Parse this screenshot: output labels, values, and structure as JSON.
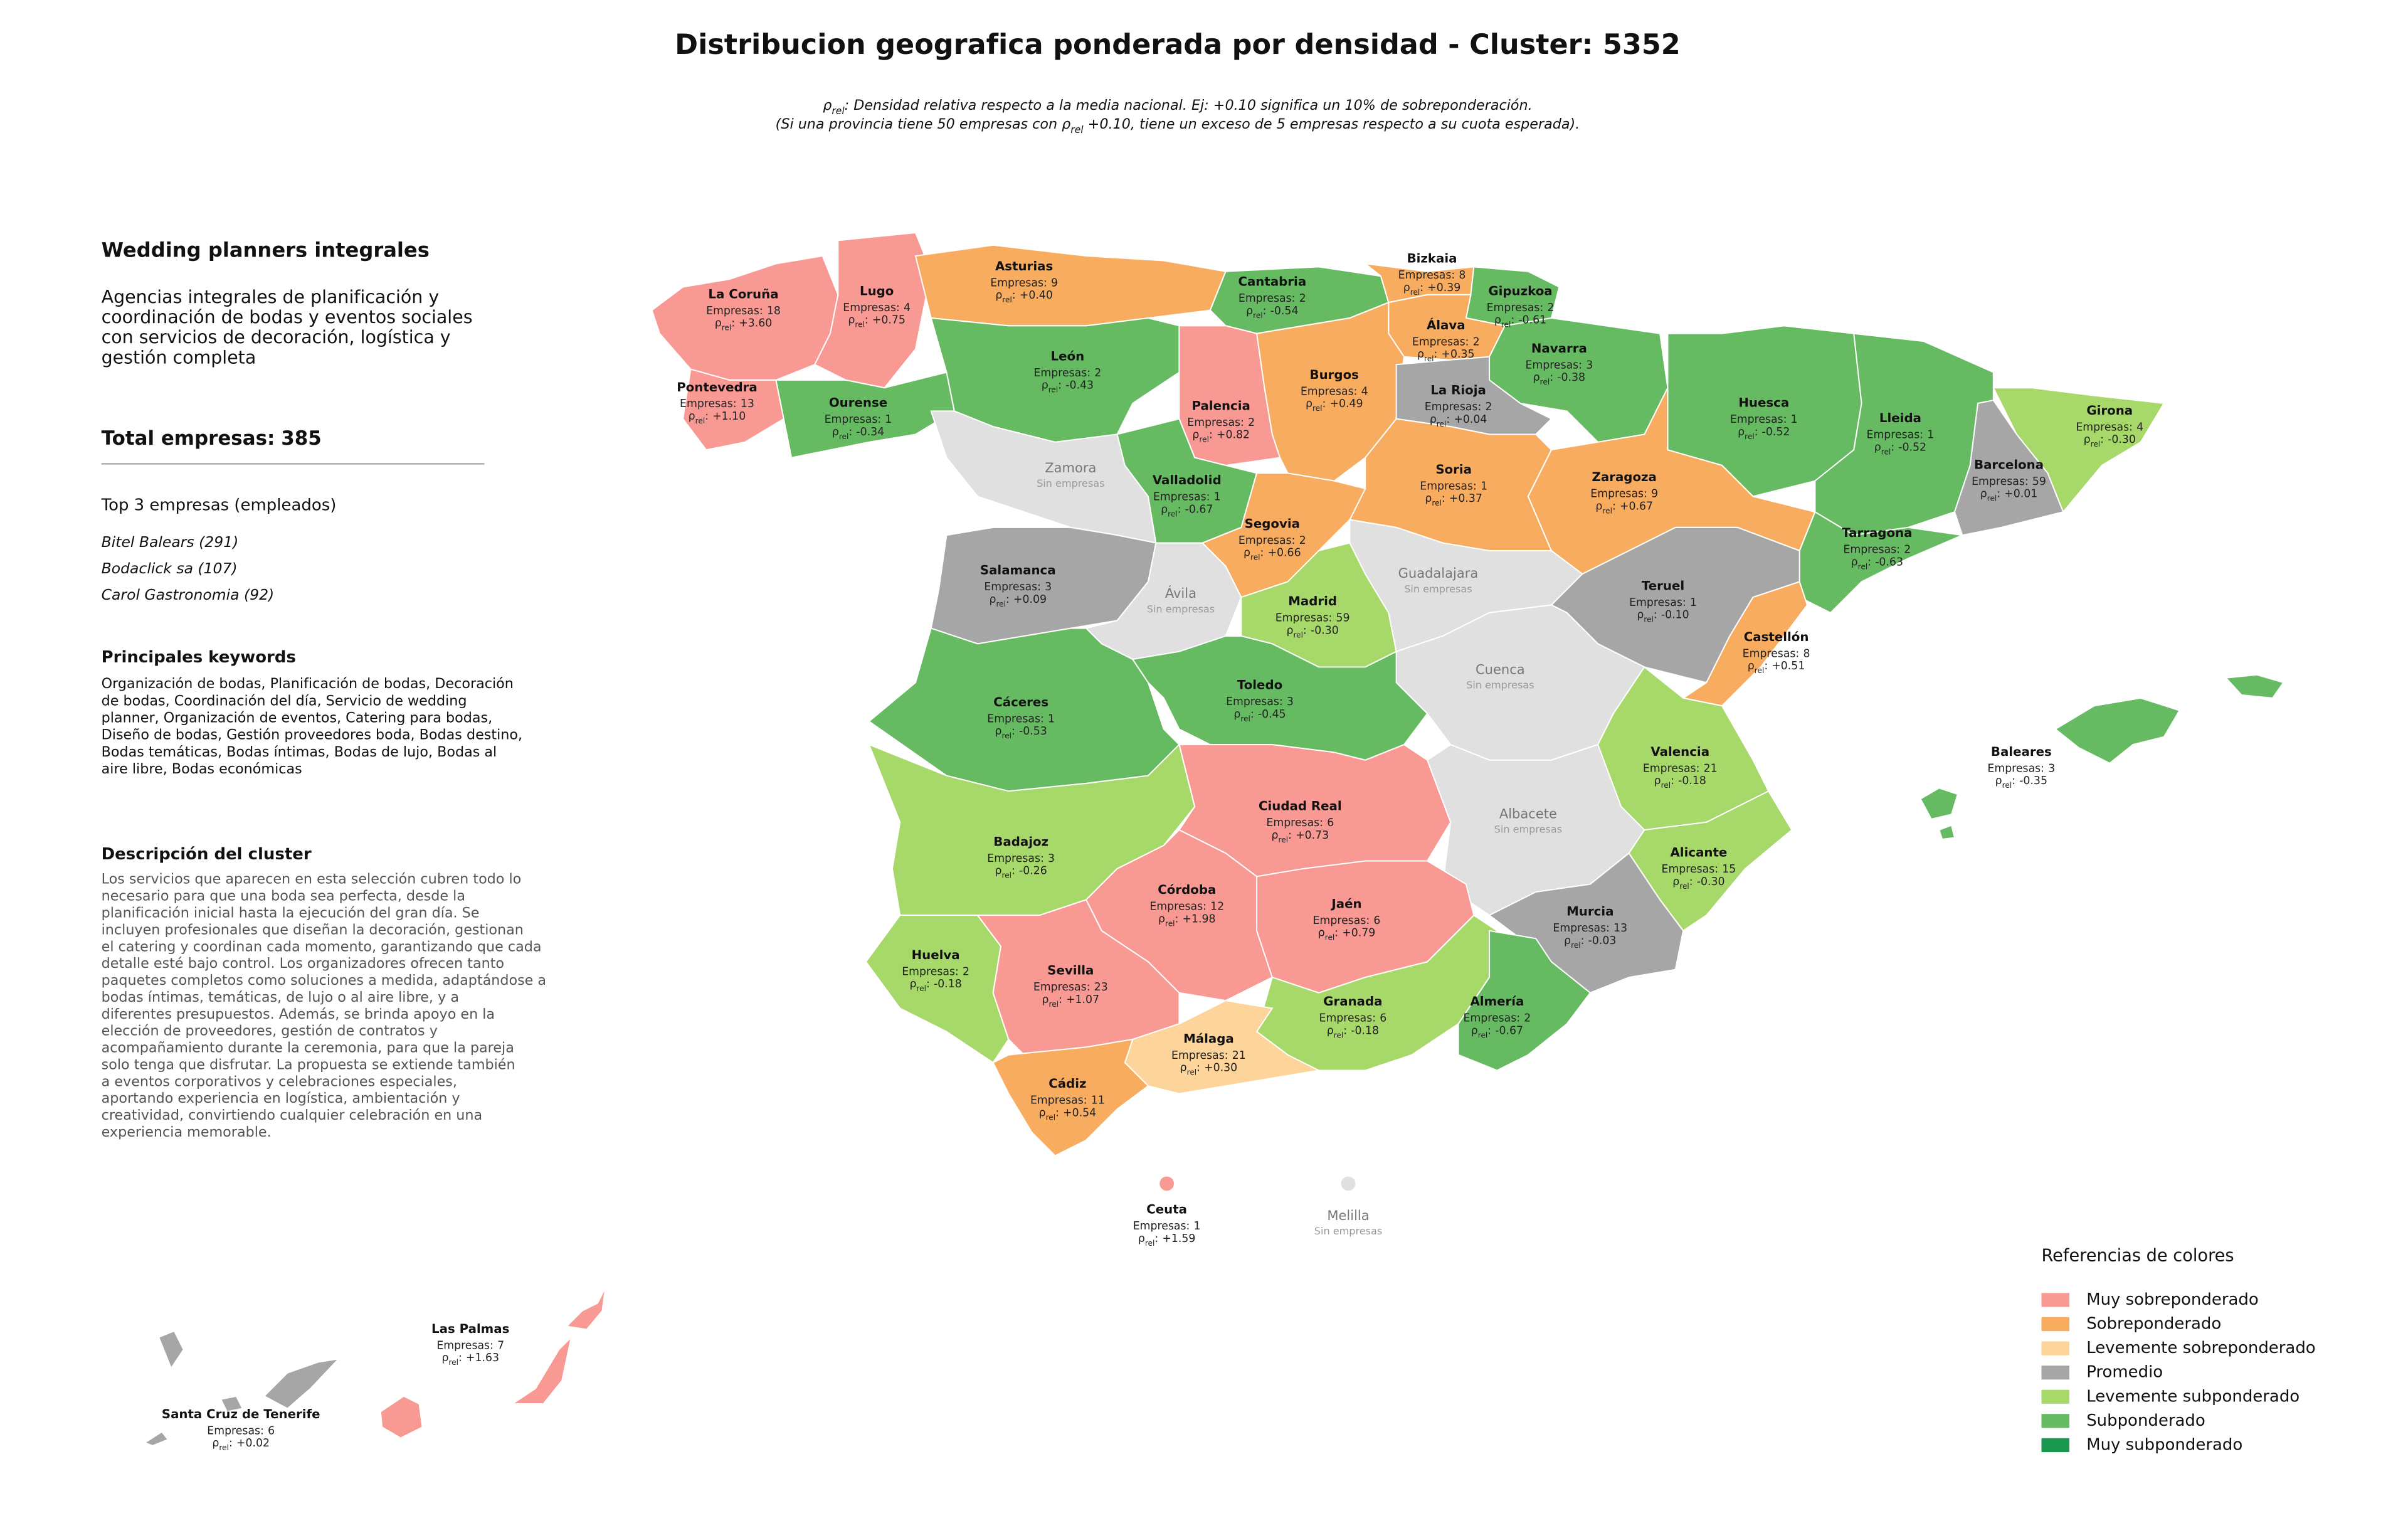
{
  "title": "Distribucion geografica ponderada por densidad - Cluster: 5352",
  "subtitle": [
    {
      "pre": "ρ",
      "sub": "rel",
      "post": ": Densidad relativa respecto a la media nacional. Ej: +0.10 significa un 10% de sobreponderación."
    },
    {
      "pre": "(Si una provincia tiene 50 empresas con ρ",
      "sub": "rel",
      "post": " +0.10, tiene un exceso de 5 empresas respecto a su cuota esperada)."
    }
  ],
  "panel": {
    "title": "Wedding planners integrales",
    "description": [
      "Agencias integrales de planificación y",
      "coordinación de bodas y eventos sociales",
      "con servicios de decoración, logística y",
      "gestión completa"
    ],
    "total_label": "Total empresas:",
    "total": 385,
    "top_title": "Top 3 empresas (empleados)",
    "top": [
      "Bitel Balears (291)",
      "Bodaclick sa (107)",
      "Carol Gastronomia (92)"
    ],
    "keywords_title": "Principales keywords",
    "keywords": [
      "Organización de bodas, Planificación de bodas, Decoración",
      "de bodas, Coordinación del día, Servicio de wedding",
      "planner, Organización de eventos, Catering para bodas,",
      "Diseño de bodas, Gestión proveedores boda, Bodas destino,",
      "Bodas temáticas, Bodas íntimas, Bodas de lujo, Bodas al",
      "aire libre, Bodas económicas"
    ],
    "cluster_title": "Descripción del cluster",
    "cluster_text": [
      "Los servicios que aparecen en esta selección cubren todo lo",
      "necesario para que una boda sea perfecta, desde la",
      "planificación inicial hasta la ejecución del gran día. Se",
      "incluyen profesionales que diseñan la decoración, gestionan",
      "el catering y coordinan cada momento, garantizando que cada",
      "detalle esté bajo control. Los organizadores ofrecen tanto",
      "paquetes completos como soluciones a medida, adaptándose a",
      "bodas íntimas, temáticas, de lujo o al aire libre, y a",
      "diferentes presupuestos. Además, se brinda apoyo en la",
      "elección de proveedores, gestión de contratos y",
      "acompañamiento durante la ceremonia, para que la pareja",
      "solo tenga que disfrutar. La propuesta se extiende también",
      "a eventos corporativos y celebraciones especiales,",
      "aportando experiencia en logística, ambientación y",
      "creatividad, convirtiendo cualquier celebración en una",
      "experiencia memorable."
    ]
  },
  "labels": {
    "empresas": "Empresas:",
    "rho": "ρ",
    "rel": "rel",
    "colon": ":",
    "none": "Sin empresas"
  },
  "no_data_color": "#e0e0e0",
  "legend": {
    "title": "Referencias de colores",
    "items": [
      {
        "name": "Muy sobreponderado",
        "color": "#f89a93"
      },
      {
        "name": "Sobreponderado",
        "color": "#f8ac60"
      },
      {
        "name": "Levemente sobreponderado",
        "color": "#fdd49a"
      },
      {
        "name": "Promedio",
        "color": "#a6a6a6"
      },
      {
        "name": "Levemente subponderado",
        "color": "#a7d86a"
      },
      {
        "name": "Subponderado",
        "color": "#66bb62"
      },
      {
        "name": "Muy subponderado",
        "color": "#1a9850"
      }
    ]
  },
  "provinces": [
    {
      "name": "La Coruña",
      "empresas": 18,
      "rho": 3.6,
      "rho_label": "+3.60",
      "level": 0
    },
    {
      "name": "Lugo",
      "empresas": 4,
      "rho": 0.75,
      "rho_label": "+0.75",
      "level": 0
    },
    {
      "name": "Asturias",
      "empresas": 9,
      "rho": 0.4,
      "rho_label": "+0.40",
      "level": 1
    },
    {
      "name": "Cantabria",
      "empresas": 2,
      "rho": -0.54,
      "rho_label": "-0.54",
      "level": 5
    },
    {
      "name": "Bizkaia",
      "empresas": 8,
      "rho": 0.39,
      "rho_label": "+0.39",
      "level": 1
    },
    {
      "name": "Gipuzkoa",
      "empresas": 2,
      "rho": -0.61,
      "rho_label": "-0.61",
      "level": 5
    },
    {
      "name": "Álava",
      "empresas": 2,
      "rho": 0.35,
      "rho_label": "+0.35",
      "level": 1
    },
    {
      "name": "Navarra",
      "empresas": 3,
      "rho": -0.38,
      "rho_label": "-0.38",
      "level": 5
    },
    {
      "name": "Pontevedra",
      "empresas": 13,
      "rho": 1.1,
      "rho_label": "+1.10",
      "level": 0
    },
    {
      "name": "Ourense",
      "empresas": 1,
      "rho": -0.34,
      "rho_label": "-0.34",
      "level": 5
    },
    {
      "name": "León",
      "empresas": 2,
      "rho": -0.43,
      "rho_label": "-0.43",
      "level": 5
    },
    {
      "name": "Palencia",
      "empresas": 2,
      "rho": 0.82,
      "rho_label": "+0.82",
      "level": 0
    },
    {
      "name": "Burgos",
      "empresas": 4,
      "rho": 0.49,
      "rho_label": "+0.49",
      "level": 1
    },
    {
      "name": "La Rioja",
      "empresas": 2,
      "rho": 0.04,
      "rho_label": "+0.04",
      "level": 3
    },
    {
      "name": "Huesca",
      "empresas": 1,
      "rho": -0.52,
      "rho_label": "-0.52",
      "level": 5
    },
    {
      "name": "Lleida",
      "empresas": 1,
      "rho": -0.52,
      "rho_label": "-0.52",
      "level": 5
    },
    {
      "name": "Girona",
      "empresas": 4,
      "rho": -0.3,
      "rho_label": "-0.30",
      "level": 4
    },
    {
      "name": "Barcelona",
      "empresas": 59,
      "rho": 0.01,
      "rho_label": "+0.01",
      "level": 3
    },
    {
      "name": "Zamora",
      "level": null
    },
    {
      "name": "Valladolid",
      "empresas": 1,
      "rho": -0.67,
      "rho_label": "-0.67",
      "level": 5
    },
    {
      "name": "Soria",
      "empresas": 1,
      "rho": 0.37,
      "rho_label": "+0.37",
      "level": 1
    },
    {
      "name": "Zaragoza",
      "empresas": 9,
      "rho": 0.67,
      "rho_label": "+0.67",
      "level": 1
    },
    {
      "name": "Segovia",
      "empresas": 2,
      "rho": 0.66,
      "rho_label": "+0.66",
      "level": 1
    },
    {
      "name": "Tarragona",
      "empresas": 2,
      "rho": -0.63,
      "rho_label": "-0.63",
      "level": 5
    },
    {
      "name": "Salamanca",
      "empresas": 3,
      "rho": 0.09,
      "rho_label": "+0.09",
      "level": 3
    },
    {
      "name": "Ávila",
      "level": null
    },
    {
      "name": "Madrid",
      "empresas": 59,
      "rho": -0.3,
      "rho_label": "-0.30",
      "level": 4
    },
    {
      "name": "Guadalajara",
      "level": null
    },
    {
      "name": "Teruel",
      "empresas": 1,
      "rho": -0.1,
      "rho_label": "-0.10",
      "level": 3
    },
    {
      "name": "Castellón",
      "empresas": 8,
      "rho": 0.51,
      "rho_label": "+0.51",
      "level": 1
    },
    {
      "name": "Cuenca",
      "level": null
    },
    {
      "name": "Cáceres",
      "empresas": 1,
      "rho": -0.53,
      "rho_label": "-0.53",
      "level": 5
    },
    {
      "name": "Toledo",
      "empresas": 3,
      "rho": -0.45,
      "rho_label": "-0.45",
      "level": 5
    },
    {
      "name": "Baleares",
      "empresas": 3,
      "rho": -0.35,
      "rho_label": "-0.35",
      "level": 5
    },
    {
      "name": "Valencia",
      "empresas": 21,
      "rho": -0.18,
      "rho_label": "-0.18",
      "level": 4
    },
    {
      "name": "Ciudad Real",
      "empresas": 6,
      "rho": 0.73,
      "rho_label": "+0.73",
      "level": 0
    },
    {
      "name": "Badajoz",
      "empresas": 3,
      "rho": -0.26,
      "rho_label": "-0.26",
      "level": 4
    },
    {
      "name": "Albacete",
      "level": null
    },
    {
      "name": "Alicante",
      "empresas": 15,
      "rho": -0.3,
      "rho_label": "-0.30",
      "level": 4
    },
    {
      "name": "Córdoba",
      "empresas": 12,
      "rho": 1.98,
      "rho_label": "+1.98",
      "level": 0
    },
    {
      "name": "Jaén",
      "empresas": 6,
      "rho": 0.79,
      "rho_label": "+0.79",
      "level": 0
    },
    {
      "name": "Murcia",
      "empresas": 13,
      "rho": -0.03,
      "rho_label": "-0.03",
      "level": 3
    },
    {
      "name": "Huelva",
      "empresas": 2,
      "rho": -0.18,
      "rho_label": "-0.18",
      "level": 4
    },
    {
      "name": "Sevilla",
      "empresas": 23,
      "rho": 1.07,
      "rho_label": "+1.07",
      "level": 0
    },
    {
      "name": "Granada",
      "empresas": 6,
      "rho": -0.18,
      "rho_label": "-0.18",
      "level": 4
    },
    {
      "name": "Almería",
      "empresas": 2,
      "rho": -0.67,
      "rho_label": "-0.67",
      "level": 5
    },
    {
      "name": "Málaga",
      "empresas": 21,
      "rho": 0.3,
      "rho_label": "+0.30",
      "level": 2
    },
    {
      "name": "Cádiz",
      "empresas": 11,
      "rho": 0.54,
      "rho_label": "+0.54",
      "level": 1
    },
    {
      "name": "Ceuta",
      "empresas": 1,
      "rho": 1.59,
      "rho_label": "+1.59",
      "level": 0
    },
    {
      "name": "Melilla",
      "level": null
    },
    {
      "name": "Las Palmas",
      "empresas": 7,
      "rho": 1.63,
      "rho_label": "+1.63",
      "level": 0
    },
    {
      "name": "Santa Cruz de Tenerife",
      "empresas": 6,
      "rho": 0.02,
      "rho_label": "+0.02",
      "level": 3
    }
  ]
}
